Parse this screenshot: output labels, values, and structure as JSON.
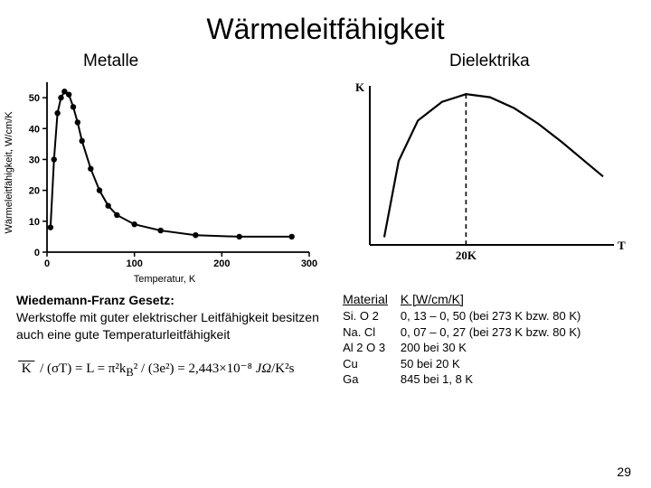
{
  "title": "Wärmeleitfähigkeit",
  "left": {
    "subtitle": "Metalle",
    "ylabel": "Wärmeleitfähigkeit, W/cm/K",
    "xlabel": "Temperatur, K",
    "chart": {
      "type": "line-with-markers",
      "xlim": [
        0,
        300
      ],
      "ylim": [
        0,
        55
      ],
      "xticks": [
        0,
        100,
        200,
        300
      ],
      "yticks": [
        0,
        10,
        20,
        30,
        40,
        50
      ],
      "line_color": "#000000",
      "marker_color": "#000000",
      "axis_color": "#000000",
      "background_color": "#ffffff",
      "line_width": 2,
      "marker_size": 3.2,
      "tick_fontsize": 11,
      "points_x": [
        4,
        8,
        12,
        16,
        20,
        25,
        30,
        35,
        40,
        50,
        60,
        70,
        80,
        100,
        130,
        170,
        220,
        280
      ],
      "points_y": [
        8,
        30,
        45,
        50,
        52,
        51,
        47,
        42,
        36,
        27,
        20,
        15,
        12,
        9,
        7,
        5.5,
        5,
        5
      ]
    }
  },
  "right": {
    "subtitle": "Dielektrika",
    "chart": {
      "type": "schematic-curve",
      "axis_color": "#000000",
      "line_color": "#000000",
      "background_color": "#ffffff",
      "line_width": 2.2,
      "ylabel_glyph": "K",
      "xlabel_glyph": "T",
      "marker_label": "20K",
      "label_fontsize": 13,
      "dash_pattern": "5,4",
      "curve": [
        [
          0.06,
          0.05
        ],
        [
          0.12,
          0.54
        ],
        [
          0.2,
          0.8
        ],
        [
          0.3,
          0.92
        ],
        [
          0.4,
          0.97
        ],
        [
          0.5,
          0.95
        ],
        [
          0.6,
          0.88
        ],
        [
          0.7,
          0.78
        ],
        [
          0.8,
          0.66
        ],
        [
          0.9,
          0.53
        ],
        [
          0.97,
          0.44
        ]
      ],
      "dash_x": 0.4
    }
  },
  "law": {
    "title": "Wiedemann-Franz Gesetz:",
    "body": "Werkstoffe mit guter elektrischer Leitfähigkeit besitzen auch eine gute Temperaturleitfähigkeit",
    "formula_html": "<span style='text-decoration:overline; padding:0 2px'>&nbsp;K&nbsp;</span> / (σT) = L = π²k<sub>B</sub>² / (3e²) = 2,443×10⁻⁸ <span style='font-style:italic'>JΩ</span>/K²s"
  },
  "table": {
    "header": [
      "Material",
      "K [W/cm/K]"
    ],
    "rows": [
      [
        "Si. O 2",
        "0, 13 – 0, 50  (bei 273 K bzw. 80 K)"
      ],
      [
        "Na. Cl",
        "0, 07 – 0, 27  (bei 273 K bzw. 80 K)"
      ],
      [
        "Al 2 O 3",
        "200 bei 30 K"
      ],
      [
        "Cu",
        "  50 bei 20 K"
      ],
      [
        "Ga",
        "845 bei 1, 8 K"
      ]
    ]
  },
  "page_number": "29"
}
